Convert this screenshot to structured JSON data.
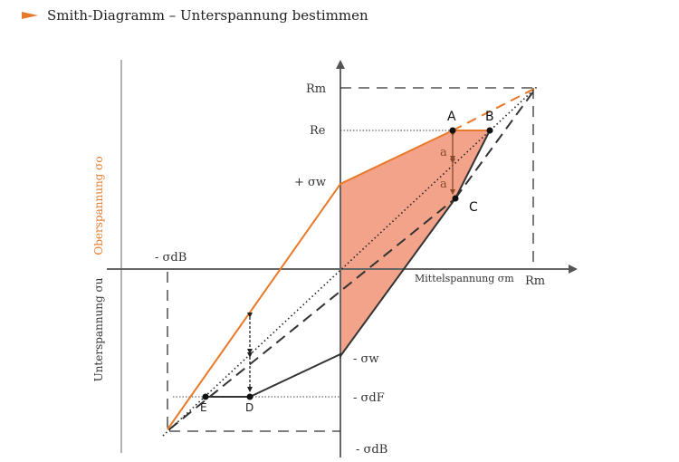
{
  "header": {
    "title": "Smith-Diagramm – Unterspannung bestimmen",
    "accent": "#e8792a"
  },
  "labels": {
    "rm_y": "Rm",
    "re_y": "Re",
    "sw_pos": "+ σw",
    "sw_neg": "- σw",
    "sdf_neg": "- σdF",
    "sdb_neg_y": "- σdB",
    "sdb_neg_x": "- σdB",
    "rm_x": "Rm",
    "x_axis": "Mittelspannung σm",
    "y_axis_upper": "Oberspannung σo",
    "y_axis_lower": "Unterspannung σu",
    "point_a": "A",
    "point_b": "B",
    "point_c": "C",
    "point_d": "D",
    "point_e": "E",
    "dist_a1": "a",
    "dist_a2": "a"
  },
  "colors": {
    "upper_line": "#e8792a",
    "fill_region": "#f4a38b",
    "lower_line": "#333333",
    "dash": "#333333",
    "a_marker": "#8a4a2c"
  }
}
